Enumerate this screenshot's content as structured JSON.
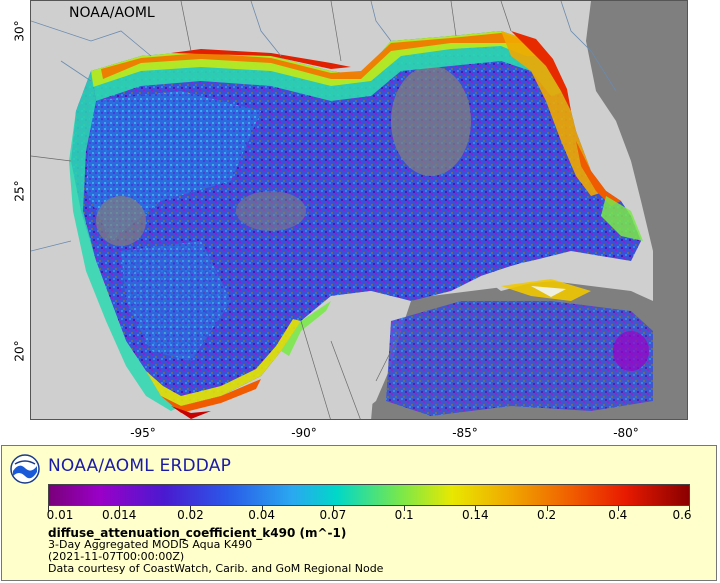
{
  "map": {
    "credit": "NOAA/AOML",
    "x_ticks": [
      "-95°",
      "-90°",
      "-85°",
      "-80°"
    ],
    "y_ticks": [
      "30°",
      "25°",
      "20°"
    ],
    "colors": {
      "land": "#cfcfcf",
      "no_data": "#7f7f7f",
      "border": "#6a8ab0"
    }
  },
  "legend": {
    "brand": "NOAA/AOML ERDDAP",
    "colorbar_ticks": [
      "0.01",
      "0.014",
      "0.02",
      "0.04",
      "0.07",
      "0.1",
      "0.14",
      "0.2",
      "0.4",
      "0.6"
    ],
    "variable": "diffuse_attenuation_coefficient_k490 (m^-1)",
    "line1": "3-Day Aggregated MODIS Aqua K490",
    "line2": "(2021-11-07T00:00:00Z)",
    "line3": "Data courtesy of CoastWatch, Carib. and GoM Regional Node"
  }
}
